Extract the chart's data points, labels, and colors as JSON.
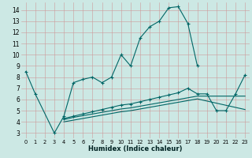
{
  "xlabel": "Humidex (Indice chaleur)",
  "background_color": "#cce8e4",
  "line_color": "#006666",
  "xlim": [
    -0.5,
    23.5
  ],
  "ylim": [
    2.5,
    14.7
  ],
  "xticks": [
    0,
    1,
    2,
    3,
    4,
    5,
    6,
    7,
    8,
    9,
    10,
    11,
    12,
    13,
    14,
    15,
    16,
    17,
    18,
    19,
    20,
    21,
    22,
    23
  ],
  "yticks": [
    3,
    4,
    5,
    6,
    7,
    8,
    9,
    10,
    11,
    12,
    13,
    14
  ],
  "series": [
    {
      "x": [
        0,
        1,
        3,
        4,
        5,
        6,
        7,
        8,
        9,
        10,
        11,
        12,
        13,
        14,
        15,
        16,
        17,
        18
      ],
      "y": [
        8.5,
        6.5,
        3.0,
        4.5,
        7.5,
        7.8,
        8.0,
        7.5,
        8.0,
        10.0,
        9.0,
        11.5,
        12.5,
        13.0,
        14.2,
        14.3,
        12.8,
        9.0
      ],
      "marker": true
    },
    {
      "x": [
        4,
        5,
        6,
        7,
        8,
        9,
        10,
        11,
        12,
        13,
        14,
        15,
        16,
        17,
        18,
        19,
        20,
        21,
        22,
        23
      ],
      "y": [
        4.3,
        4.5,
        4.7,
        4.9,
        5.1,
        5.3,
        5.5,
        5.6,
        5.8,
        6.0,
        6.2,
        6.4,
        6.6,
        7.0,
        6.5,
        6.5,
        5.0,
        5.0,
        6.5,
        8.2
      ],
      "marker": true
    },
    {
      "x": [
        4,
        5,
        6,
        7,
        8,
        9,
        10,
        11,
        12,
        13,
        14,
        15,
        16,
        17,
        18,
        23
      ],
      "y": [
        4.2,
        4.4,
        4.55,
        4.7,
        4.85,
        5.0,
        5.15,
        5.25,
        5.4,
        5.55,
        5.7,
        5.85,
        6.0,
        6.15,
        6.3,
        6.3
      ],
      "marker": false
    },
    {
      "x": [
        4,
        5,
        6,
        7,
        8,
        9,
        10,
        11,
        12,
        13,
        14,
        15,
        16,
        17,
        18,
        23
      ],
      "y": [
        4.0,
        4.15,
        4.3,
        4.45,
        4.6,
        4.75,
        4.9,
        5.0,
        5.15,
        5.3,
        5.45,
        5.6,
        5.75,
        5.9,
        6.05,
        5.1
      ],
      "marker": false
    }
  ]
}
